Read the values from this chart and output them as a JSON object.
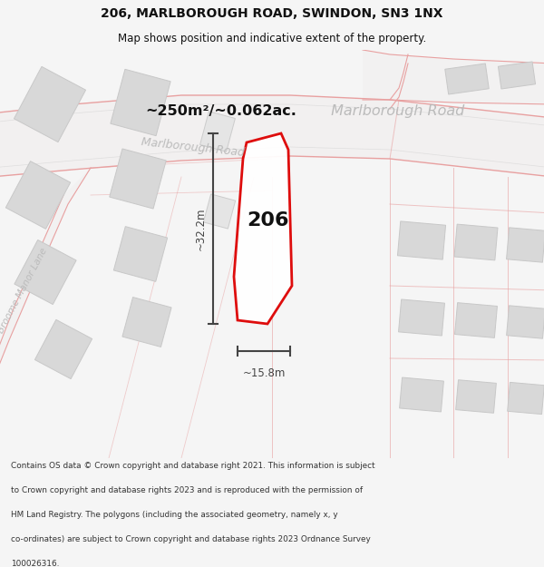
{
  "title": "206, MARLBOROUGH ROAD, SWINDON, SN3 1NX",
  "subtitle": "Map shows position and indicative extent of the property.",
  "footer_lines": [
    "Contains OS data © Crown copyright and database right 2021. This information is subject",
    "to Crown copyright and database rights 2023 and is reproduced with the permission of",
    "HM Land Registry. The polygons (including the associated geometry, namely x, y",
    "co-ordinates) are subject to Crown copyright and database rights 2023 Ordnance Survey",
    "100026316."
  ],
  "area_label_black": "~250m²/~0.062ac.",
  "area_label_gray": " Marlborough Road",
  "road_label_diag": "Marlborough Road",
  "road_label_diag2": "Broome Manor Lane",
  "road_label_right": "Marlborough Road",
  "width_label": "~15.8m",
  "height_label": "~32.2m",
  "property_number": "206",
  "bg_color": "#f5f5f5",
  "map_bg": "#ffffff",
  "road_line_color": "#e8a0a0",
  "building_fill": "#d8d8d8",
  "building_edge": "#c0c0c0",
  "property_edge": "#dd0000",
  "property_fill": "#ffffff",
  "dim_color": "#444444",
  "road_text_color": "#bbbbbb",
  "title_color": "#111111"
}
